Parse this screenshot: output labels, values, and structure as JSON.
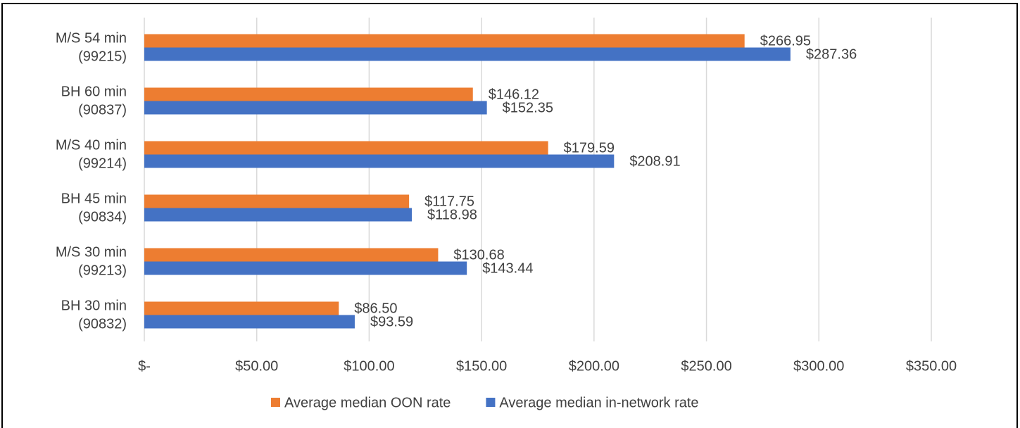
{
  "chart_data": {
    "type": "barh",
    "categories": [
      [
        "M/S 54 min",
        "(99215)"
      ],
      [
        "BH 60 min",
        "(90837)"
      ],
      [
        "M/S 40 min",
        "(99214)"
      ],
      [
        "BH 45 min",
        "(90834)"
      ],
      [
        "M/S 30 min",
        "(99213)"
      ],
      [
        "BH 30 min",
        "(90832)"
      ]
    ],
    "series": [
      {
        "name": "Average median OON rate",
        "color": "#ed7d31",
        "values": [
          266.95,
          146.12,
          179.59,
          117.75,
          130.68,
          86.5
        ],
        "value_labels": [
          "$266.95",
          "$146.12",
          "$179.59",
          "$117.75",
          "$130.68",
          "$86.50"
        ]
      },
      {
        "name": "Average median in-network rate",
        "color": "#4472c4",
        "values": [
          287.36,
          152.35,
          208.91,
          118.98,
          143.44,
          93.59
        ],
        "value_labels": [
          "$287.36",
          "$152.35",
          "$208.91",
          "$118.98",
          "$143.44",
          "$93.59"
        ]
      }
    ],
    "xlim": [
      0,
      350
    ],
    "xticks": [
      {
        "value": 0,
        "label": "$-"
      },
      {
        "value": 50,
        "label": "$50.00"
      },
      {
        "value": 100,
        "label": "$100.00"
      },
      {
        "value": 150,
        "label": "$150.00"
      },
      {
        "value": 200,
        "label": "$200.00"
      },
      {
        "value": 250,
        "label": "$250.00"
      },
      {
        "value": 300,
        "label": "$300.00"
      },
      {
        "value": 350,
        "label": "$350.00"
      }
    ],
    "grid": true,
    "legend": "bottom"
  }
}
